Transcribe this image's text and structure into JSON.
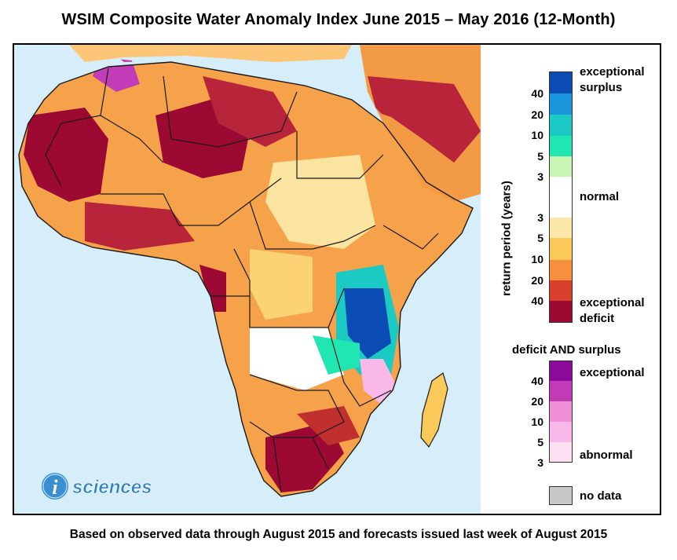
{
  "title": "WSIM Composite Water Anomaly Index June 2015 – May 2016 (12-Month)",
  "footnote": "Based on observed data through August 2015 and forecasts issued last week of August 2015",
  "legend": {
    "axis_label": "return period (years)",
    "surplus_ticks": [
      "40",
      "20",
      "10",
      "5",
      "3"
    ],
    "deficit_ticks": [
      "3",
      "5",
      "10",
      "20",
      "40"
    ],
    "exceptional_surplus_line1": "exceptional",
    "exceptional_surplus_line2": "surplus",
    "normal_label": "normal",
    "exceptional_deficit_line1": "exceptional",
    "exceptional_deficit_line2": "deficit",
    "combined_heading": "deficit AND surplus",
    "combined_ticks": [
      "40",
      "20",
      "10",
      "5",
      "3"
    ],
    "combined_exceptional": "exceptional",
    "combined_abnormal": "abnormal",
    "no_data_label": "no data",
    "colors": {
      "surplus": [
        "#0a4cb3",
        "#1a96dc",
        "#1ccac4",
        "#20e6b2",
        "#c8f5b4"
      ],
      "normal": "#ffffff",
      "deficit": [
        "#fbe8a8",
        "#fbc85a",
        "#f6903e",
        "#d9402c",
        "#9c0a34"
      ],
      "combined": [
        "#8c0a9c",
        "#c23cb8",
        "#f090d8",
        "#f8b8e8",
        "#fce0f2"
      ],
      "no_data": "#c8c8c8",
      "ocean": "#d6eefa"
    }
  },
  "logo": {
    "letter": "i",
    "text": "sciences"
  }
}
